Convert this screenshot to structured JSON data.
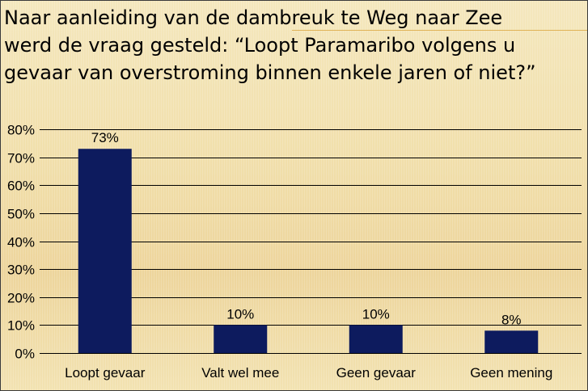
{
  "slide": {
    "title": "Naar aanleiding van de dambreuk te Weg naar Zee\nwerd de vraag gesteld: “Loopt Paramaribo volgens u\ngevaar van overstroming binnen enkele jaren of niet?”"
  },
  "colors": {
    "bar": "#0d1b5e",
    "gridline": "#000000",
    "background": "#f2e4b8",
    "accent_line": "#e0b257"
  },
  "chart_data": {
    "type": "bar",
    "title": "",
    "xlabel": "",
    "ylabel": "",
    "categories": [
      "Loopt gevaar",
      "Valt wel mee",
      "Geen gevaar",
      "Geen mening"
    ],
    "values": [
      73,
      10,
      10,
      8
    ],
    "data_labels": [
      "73%",
      "10%",
      "10%",
      "8%"
    ],
    "ylim": [
      0,
      80
    ],
    "yticks": [
      0,
      10,
      20,
      30,
      40,
      50,
      60,
      70,
      80
    ],
    "ytick_labels": [
      "0%",
      "10%",
      "20%",
      "30%",
      "40%",
      "50%",
      "60%",
      "70%",
      "80%"
    ],
    "grid": true,
    "legend": "none"
  }
}
